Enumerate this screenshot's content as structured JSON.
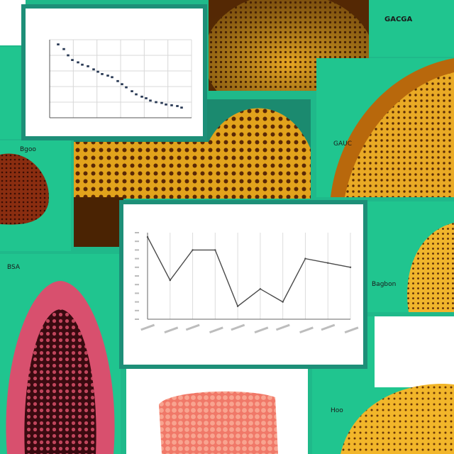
{
  "colors": {
    "background": "#20c58f",
    "panel_border": "#1d8f78",
    "texture_orange": "#e3a21a",
    "texture_dark": "#5a2a06",
    "texture_pink": "#d8506e",
    "texture_salmon": "#f0706a",
    "line": "#4a4a4a"
  },
  "tiles": {
    "top_right_label": "GACGA",
    "mid_right_label": "GAUC",
    "left_label": "Bgoo",
    "left_label_2": "BSA",
    "right_label_3": "Bagbon",
    "bottom_right_label": "Hoo"
  },
  "chart_data": [
    {
      "type": "scatter",
      "title": "",
      "xlabel": "",
      "ylabel": "",
      "x": [
        0.6,
        1.0,
        1.3,
        1.6,
        2.0,
        2.3,
        2.7,
        3.1,
        3.4,
        3.7,
        4.1,
        4.4,
        4.8,
        5.1,
        5.4,
        5.8,
        6.1,
        6.5,
        6.8,
        7.1,
        7.5,
        7.9,
        8.2,
        8.6,
        9.0,
        9.3
      ],
      "y": [
        9.4,
        8.8,
        8.0,
        7.4,
        7.1,
        6.8,
        6.6,
        6.2,
        5.9,
        5.6,
        5.4,
        5.2,
        4.7,
        4.3,
        3.9,
        3.4,
        3.0,
        2.7,
        2.5,
        2.2,
        2.0,
        1.9,
        1.7,
        1.6,
        1.5,
        1.3
      ],
      "xlim": [
        0,
        10
      ],
      "ylim": [
        0,
        10
      ],
      "grid": true
    },
    {
      "type": "line",
      "title": "",
      "xlabel": "",
      "ylabel": "",
      "categories": [
        "",
        "",
        "",
        "",
        "",
        "",
        "",
        "",
        "",
        ""
      ],
      "values": [
        9.5,
        4.5,
        8.0,
        8.0,
        1.5,
        3.5,
        2.0,
        7.0,
        6.5,
        6.0
      ],
      "ylim": [
        0,
        10
      ],
      "grid": true
    }
  ]
}
